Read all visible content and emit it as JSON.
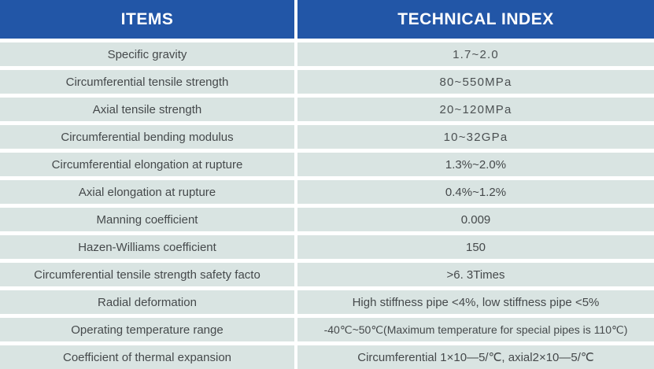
{
  "chart_data": {
    "type": "table",
    "title": "",
    "columns": [
      "ITEMS",
      "TECHNICAL INDEX"
    ],
    "rows": [
      [
        "Specific gravity",
        "1.7~2.0"
      ],
      [
        "Circumferential tensile strength",
        "80~550MPa"
      ],
      [
        "Axial tensile strength",
        "20~120MPa"
      ],
      [
        "Circumferential bending modulus",
        "10~32GPa"
      ],
      [
        "Circumferential elongation at rupture",
        "1.3%~2.0%"
      ],
      [
        "Axial elongation at rupture",
        "0.4%~1.2%"
      ],
      [
        "Manning coefficient",
        "0.009"
      ],
      [
        "Hazen-Williams coefficient",
        "150"
      ],
      [
        "Circumferential tensile strength safety facto",
        ">6. 3Times"
      ],
      [
        "Radial deformation",
        "High stiffness pipe <4%, low stiffness pipe <5%"
      ],
      [
        "Operating temperature range",
        "-40℃~50℃(Maximum temperature for special pipes is 110℃)"
      ],
      [
        "Coefficient of thermal expansion",
        "Circumferential 1×10—5/℃, axial2×10—5/℃"
      ]
    ],
    "layout": {
      "grid": "off",
      "legend": "none",
      "header_position": "top"
    }
  },
  "colors": {
    "header_bg": "#2256a7",
    "header_text": "#ffffff",
    "row_bg": "#d9e4e2",
    "row_text": "#45494b",
    "divider": "#ffffff"
  }
}
